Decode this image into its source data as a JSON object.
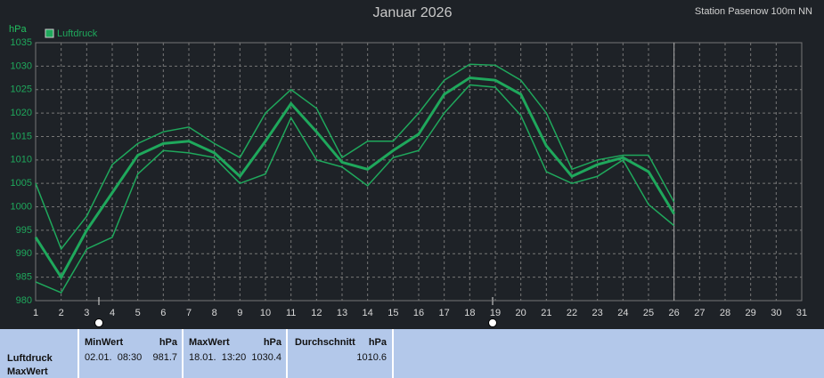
{
  "chart_data": {
    "type": "line",
    "title": "Januar 2026",
    "subtitle": "Station Pasenow 100m NN",
    "y_label": "hPa",
    "x": [
      1,
      2,
      3,
      4,
      5,
      6,
      7,
      8,
      9,
      10,
      11,
      12,
      13,
      14,
      15,
      16,
      17,
      18,
      19,
      20,
      21,
      22,
      23,
      24,
      25,
      26
    ],
    "series": [
      {
        "name": "Luftdruck",
        "color": "#1fa85c",
        "values": [
          993.5,
          985,
          995,
          1003,
          1011,
          1013.5,
          1014,
          1011.5,
          1006.5,
          1014,
          1022,
          1016,
          1009.5,
          1008,
          1012,
          1015.5,
          1024,
          1027.5,
          1027,
          1024,
          1013,
          1006.5,
          1009,
          1010.5,
          1007.5,
          998.5
        ]
      },
      {
        "color": "#1fa85c",
        "values": [
          1005,
          991,
          998,
          1009,
          1013.5,
          1016,
          1017,
          1013.5,
          1010.5,
          1020,
          1025,
          1021,
          1010.5,
          1014,
          1014,
          1020,
          1027,
          1030.4,
          1030.2,
          1027,
          1020,
          1008,
          1010,
          1011,
          1011,
          1001
        ]
      },
      {
        "color": "#1fa85c",
        "values": [
          984,
          981.7,
          991,
          993.5,
          1007,
          1012,
          1011.5,
          1010.5,
          1005,
          1007,
          1019,
          1010,
          1008.5,
          1004.5,
          1010.5,
          1012,
          1020,
          1026,
          1025.5,
          1019.5,
          1007.5,
          1005,
          1006.5,
          1010,
          1000.5,
          996
        ]
      }
    ],
    "xlim": [
      1,
      31
    ],
    "xticks": [
      1,
      2,
      3,
      4,
      5,
      6,
      7,
      8,
      9,
      10,
      11,
      12,
      13,
      14,
      15,
      16,
      17,
      18,
      19,
      20,
      21,
      22,
      23,
      24,
      25,
      26,
      27,
      28,
      29,
      30,
      31
    ],
    "ylim": [
      980,
      1035
    ],
    "yticks": [
      980,
      985,
      990,
      995,
      1000,
      1005,
      1010,
      1015,
      1020,
      1025,
      1030,
      1035
    ],
    "current_x": 26,
    "grid": true,
    "legend": "top-left"
  },
  "stats": {
    "row_labels": [
      "Luftdruck",
      "MaxWert"
    ],
    "columns": [
      {
        "header": "MinWert",
        "unit": "hPa",
        "time": "02.01.  08:30",
        "value": "981.7"
      },
      {
        "header": "MaxWert",
        "unit": "hPa",
        "time": "18.01.  13:20",
        "value": "1030.4"
      },
      {
        "header": "Durchschnitt",
        "unit": "hPa",
        "value": "1010.6"
      }
    ]
  }
}
